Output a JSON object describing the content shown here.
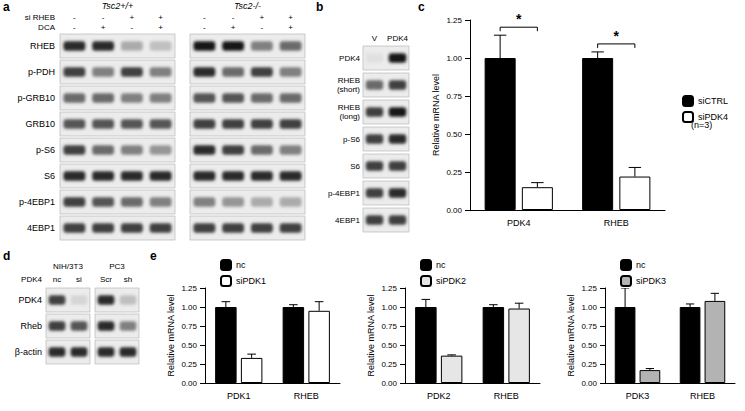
{
  "panel_letters": [
    "a",
    "b",
    "c",
    "d",
    "e"
  ],
  "blots": {
    "a": {
      "groups": [
        "Tsc2+/+",
        "Tsc2-/-"
      ],
      "conditions": [
        {
          "label": "si RHEB",
          "values": [
            "-",
            "-",
            "+",
            "+"
          ]
        },
        {
          "label": "DCA",
          "values": [
            "-",
            "+",
            "-",
            "+"
          ]
        }
      ],
      "rows": [
        {
          "label": "RHEB",
          "bands": [
            [
              0.9,
              0.9,
              0.3,
              0.2
            ],
            [
              1,
              1,
              0.5,
              0.6
            ]
          ]
        },
        {
          "label": "p-PDH",
          "bands": [
            [
              0.8,
              0.5,
              0.8,
              0.5
            ],
            [
              0.9,
              0.6,
              0.8,
              0.5
            ]
          ]
        },
        {
          "label": "p-GRB10",
          "bands": [
            [
              0.6,
              0.6,
              0.5,
              0.5
            ],
            [
              0.7,
              0.7,
              0.6,
              0.6
            ]
          ]
        },
        {
          "label": "GRB10",
          "bands": [
            [
              0.7,
              0.7,
              0.7,
              0.7
            ],
            [
              0.8,
              0.8,
              0.8,
              0.8
            ]
          ]
        },
        {
          "label": "p-S6",
          "bands": [
            [
              0.8,
              0.6,
              0.5,
              0.4
            ],
            [
              0.9,
              0.8,
              0.6,
              0.5
            ]
          ]
        },
        {
          "label": "S6",
          "bands": [
            [
              0.9,
              0.9,
              0.9,
              0.9
            ],
            [
              0.9,
              0.9,
              0.9,
              0.9
            ]
          ]
        },
        {
          "label": "p-4EBP1",
          "bands": [
            [
              0.8,
              0.7,
              0.6,
              0.5
            ],
            [
              0.5,
              0.4,
              0.3,
              0.3
            ]
          ]
        },
        {
          "label": "4EBP1",
          "bands": [
            [
              0.8,
              0.8,
              0.8,
              0.8
            ],
            [
              0.8,
              0.8,
              0.8,
              0.8
            ]
          ]
        }
      ]
    },
    "b": {
      "lanes": [
        "V",
        "PDK4"
      ],
      "rows": [
        {
          "label": "PDK4",
          "bands": [
            [
              0.05,
              1
            ]
          ]
        },
        {
          "label": "RHEB (short)",
          "bands": [
            [
              0.6,
              0.8
            ]
          ]
        },
        {
          "label": "RHEB (long)",
          "bands": [
            [
              0.8,
              1
            ]
          ]
        },
        {
          "label": "p-S6",
          "bands": [
            [
              0.8,
              0.9
            ]
          ]
        },
        {
          "label": "S6",
          "bands": [
            [
              0.8,
              0.8
            ]
          ]
        },
        {
          "label": "p-4EBP1",
          "bands": [
            [
              0.8,
              0.9
            ]
          ]
        },
        {
          "label": "4EBP1",
          "bands": [
            [
              0.8,
              0.8
            ]
          ]
        }
      ]
    },
    "d": {
      "header_label": "PDK4",
      "groups": [
        {
          "label": "NIH/3T3",
          "lanes": [
            "nc",
            "si"
          ]
        },
        {
          "label": "PC3",
          "lanes": [
            "Scr",
            "sh"
          ]
        }
      ],
      "rows": [
        {
          "label": "PDK4",
          "bands": [
            [
              0.8,
              0.1
            ],
            [
              0.9,
              0.2
            ]
          ]
        },
        {
          "label": "Rheb",
          "bands": [
            [
              0.8,
              0.7
            ],
            [
              0.9,
              0.5
            ]
          ]
        },
        {
          "label": "β-actin",
          "bands": [
            [
              0.9,
              0.9
            ],
            [
              0.9,
              0.9
            ]
          ]
        }
      ]
    }
  },
  "chart_data": [
    {
      "type": "bar",
      "ylabel": "Relative mRNA level",
      "categories": [
        "PDK4",
        "RHEB"
      ],
      "series": [
        {
          "name": "siCTRL",
          "color": "#000000",
          "values": [
            1.0,
            1.0
          ],
          "errors": [
            0.15,
            0.04
          ]
        },
        {
          "name": "siPDK4",
          "color": "#ffffff",
          "values": [
            0.15,
            0.22
          ],
          "errors": [
            0.03,
            0.06
          ]
        }
      ],
      "ylim": [
        0,
        1.25
      ],
      "yticks": [
        {
          "value": 0,
          "label": "0.00"
        },
        0.25,
        {
          "value": 0.5,
          "label": "0.50"
        },
        0.75,
        {
          "value": 1,
          "label": "1.00"
        },
        1.25
      ],
      "grid": false,
      "legend": "right",
      "annotations": [
        {
          "category": "PDK4",
          "text": "*"
        },
        {
          "category": "RHEB",
          "text": "*"
        },
        {
          "anchor": "legend",
          "text": "(n=3)"
        }
      ]
    },
    {
      "type": "bar",
      "ylabel": "Relative mRNA level",
      "categories": [
        "PDK1",
        "RHEB"
      ],
      "series": [
        {
          "name": "nc",
          "color": "#000000",
          "values": [
            1.0,
            1.0
          ],
          "errors": [
            0.07,
            0.03
          ]
        },
        {
          "name": "siPDK1",
          "color": "#ffffff",
          "values": [
            0.33,
            0.95
          ],
          "errors": [
            0.05,
            0.12
          ]
        }
      ],
      "ylim": [
        0,
        1.25
      ],
      "yticks": [
        {
          "value": 0,
          "label": "0.00"
        },
        0.25,
        {
          "value": 0.5,
          "label": "0.50"
        },
        0.75,
        {
          "value": 1,
          "label": "1.00"
        },
        1.25
      ],
      "grid": false,
      "legend": "top-left"
    },
    {
      "type": "bar",
      "ylabel": "Relative mRNA level",
      "categories": [
        "PDK2",
        "RHEB"
      ],
      "series": [
        {
          "name": "nc",
          "color": "#000000",
          "values": [
            1.0,
            1.0
          ],
          "errors": [
            0.1,
            0.03
          ]
        },
        {
          "name": "siPDK2",
          "color": "#e6e6e6",
          "values": [
            0.36,
            0.98
          ],
          "errors": [
            0.01,
            0.07
          ]
        }
      ],
      "ylim": [
        0,
        1.25
      ],
      "yticks": [
        {
          "value": 0,
          "label": "0.00"
        },
        0.25,
        {
          "value": 0.5,
          "label": "0.50"
        },
        0.75,
        {
          "value": 1,
          "label": "1.00"
        },
        1.25
      ],
      "grid": false,
      "legend": "top-left"
    },
    {
      "type": "bar",
      "ylabel": "Relative mRNA level",
      "categories": [
        "PDK3",
        "RHEB"
      ],
      "series": [
        {
          "name": "nc",
          "color": "#000000",
          "values": [
            1.0,
            1.0
          ],
          "errors": [
            0.25,
            0.04
          ]
        },
        {
          "name": "siPDK3",
          "color": "#b3b3b3",
          "values": [
            0.17,
            1.08
          ],
          "errors": [
            0.02,
            0.1
          ]
        }
      ],
      "ylim": [
        0,
        1.25
      ],
      "yticks": [
        {
          "value": 0,
          "label": "0.00"
        },
        0.25,
        {
          "value": 0.5,
          "label": "0.50"
        },
        0.75,
        {
          "value": 1,
          "label": "1.00"
        },
        1.25
      ],
      "grid": false,
      "legend": "top-left"
    }
  ]
}
